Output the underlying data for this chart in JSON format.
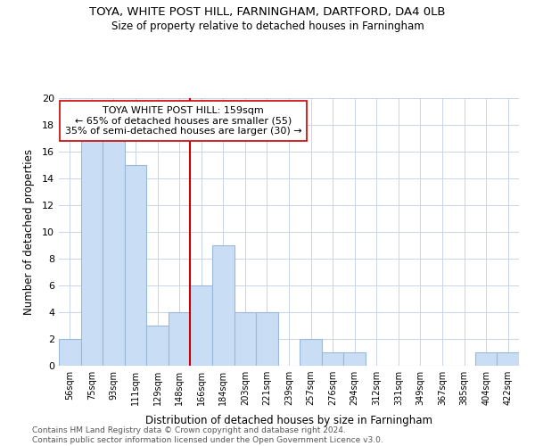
{
  "title": "TOYA, WHITE POST HILL, FARNINGHAM, DARTFORD, DA4 0LB",
  "subtitle": "Size of property relative to detached houses in Farningham",
  "xlabel": "Distribution of detached houses by size in Farningham",
  "ylabel": "Number of detached properties",
  "bar_labels": [
    "56sqm",
    "75sqm",
    "93sqm",
    "111sqm",
    "129sqm",
    "148sqm",
    "166sqm",
    "184sqm",
    "203sqm",
    "221sqm",
    "239sqm",
    "257sqm",
    "276sqm",
    "294sqm",
    "312sqm",
    "331sqm",
    "349sqm",
    "367sqm",
    "385sqm",
    "404sqm",
    "422sqm"
  ],
  "bar_values": [
    2,
    17,
    17,
    15,
    3,
    4,
    6,
    9,
    4,
    4,
    0,
    2,
    1,
    1,
    0,
    0,
    0,
    0,
    0,
    1,
    1
  ],
  "bar_color": "#c9ddf5",
  "bar_edgecolor": "#9ab8d8",
  "subject_line_index": 6,
  "subject_line_color": "#cc0000",
  "ylim": [
    0,
    20
  ],
  "yticks": [
    0,
    2,
    4,
    6,
    8,
    10,
    12,
    14,
    16,
    18,
    20
  ],
  "annotation_text": "TOYA WHITE POST HILL: 159sqm\n← 65% of detached houses are smaller (55)\n35% of semi-detached houses are larger (30) →",
  "annotation_box_facecolor": "#ffffff",
  "annotation_box_edgecolor": "#cc0000",
  "footer_text": "Contains HM Land Registry data © Crown copyright and database right 2024.\nContains public sector information licensed under the Open Government Licence v3.0.",
  "background_color": "#ffffff",
  "grid_color": "#c8d4e8"
}
